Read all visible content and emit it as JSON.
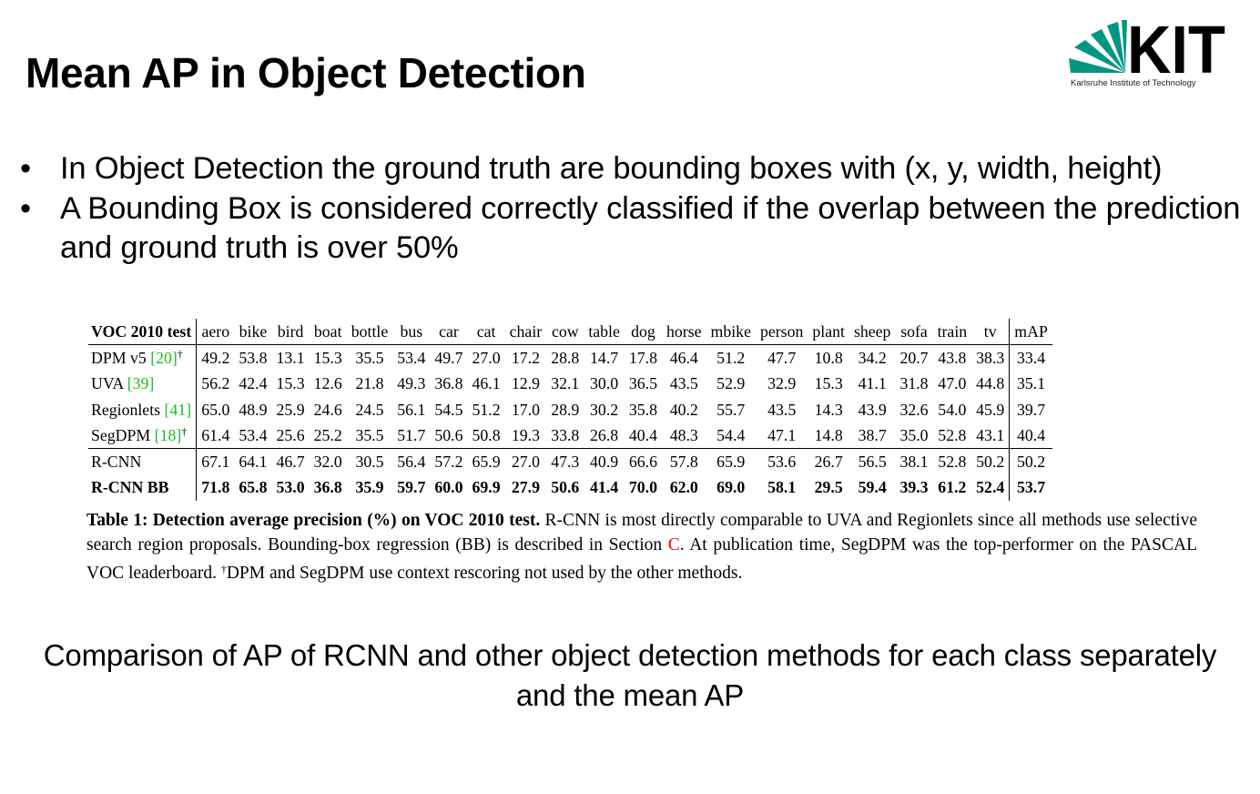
{
  "slide": {
    "title": "Mean AP in Object Detection"
  },
  "logo": {
    "wordmark": "KIT",
    "subtitle": "Karlsruhe Institute of Technology",
    "color": "#009682"
  },
  "bullets": [
    "In Object Detection the ground truth are bounding boxes with (x, y, width, height)",
    "A Bounding Box is considered correctly classified if the overlap between the prediction and ground truth is over 50%"
  ],
  "bullet_marker": "•",
  "table": {
    "corner": "VOC 2010 test",
    "columns": [
      "aero",
      "bike",
      "bird",
      "boat",
      "bottle",
      "bus",
      "car",
      "cat",
      "chair",
      "cow",
      "table",
      "dog",
      "horse",
      "mbike",
      "person",
      "plant",
      "sheep",
      "sofa",
      "train",
      "tv"
    ],
    "map_header": "mAP",
    "rows": [
      {
        "name": "DPM v5 ",
        "ref": "[20]",
        "dagger": "†",
        "values": [
          "49.2",
          "53.8",
          "13.1",
          "15.3",
          "35.5",
          "53.4",
          "49.7",
          "27.0",
          "17.2",
          "28.8",
          "14.7",
          "17.8",
          "46.4",
          "51.2",
          "47.7",
          "10.8",
          "34.2",
          "20.7",
          "43.8",
          "38.3"
        ],
        "map": "33.4"
      },
      {
        "name": "UVA ",
        "ref": "[39]",
        "dagger": "",
        "values": [
          "56.2",
          "42.4",
          "15.3",
          "12.6",
          "21.8",
          "49.3",
          "36.8",
          "46.1",
          "12.9",
          "32.1",
          "30.0",
          "36.5",
          "43.5",
          "52.9",
          "32.9",
          "15.3",
          "41.1",
          "31.8",
          "47.0",
          "44.8"
        ],
        "map": "35.1"
      },
      {
        "name": "Regionlets ",
        "ref": "[41]",
        "dagger": "",
        "values": [
          "65.0",
          "48.9",
          "25.9",
          "24.6",
          "24.5",
          "56.1",
          "54.5",
          "51.2",
          "17.0",
          "28.9",
          "30.2",
          "35.8",
          "40.2",
          "55.7",
          "43.5",
          "14.3",
          "43.9",
          "32.6",
          "54.0",
          "45.9"
        ],
        "map": "39.7"
      },
      {
        "name": "SegDPM ",
        "ref": "[18]",
        "dagger": "†",
        "values": [
          "61.4",
          "53.4",
          "25.6",
          "25.2",
          "35.5",
          "51.7",
          "50.6",
          "50.8",
          "19.3",
          "33.8",
          "26.8",
          "40.4",
          "48.3",
          "54.4",
          "47.1",
          "14.8",
          "38.7",
          "35.0",
          "52.8",
          "43.1"
        ],
        "map": "40.4"
      },
      {
        "name": "R-CNN",
        "ref": "",
        "dagger": "",
        "values": [
          "67.1",
          "64.1",
          "46.7",
          "32.0",
          "30.5",
          "56.4",
          "57.2",
          "65.9",
          "27.0",
          "47.3",
          "40.9",
          "66.6",
          "57.8",
          "65.9",
          "53.6",
          "26.7",
          "56.5",
          "38.1",
          "52.8",
          "50.2"
        ],
        "map": "50.2"
      },
      {
        "name": "R-CNN BB",
        "ref": "",
        "dagger": "",
        "values": [
          "71.8",
          "65.8",
          "53.0",
          "36.8",
          "35.9",
          "59.7",
          "60.0",
          "69.9",
          "27.9",
          "50.6",
          "41.4",
          "70.0",
          "62.0",
          "69.0",
          "58.1",
          "29.5",
          "59.4",
          "39.3",
          "61.2",
          "52.4"
        ],
        "map": "53.7"
      }
    ],
    "caption": {
      "bold": "Table 1: Detection average precision (%) on VOC 2010 test.",
      "text1": " R-CNN is most directly comparable to UVA and Regionlets since all methods use selective search region proposals. Bounding-box regression (BB) is described in Section ",
      "section": "C",
      "text2": ". At publication time, SegDPM was the top-performer on the PASCAL VOC leaderboard. ",
      "dagger": "†",
      "text3": "DPM and SegDPM use context rescoring not used by the other methods."
    }
  },
  "footnote": "Comparison of AP of RCNN and other object detection methods for each class separately and the mean AP"
}
